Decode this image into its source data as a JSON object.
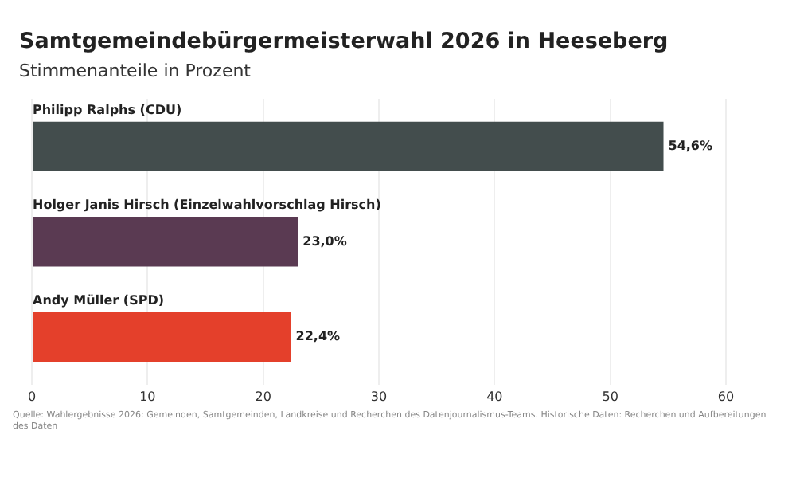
{
  "chart_data": {
    "type": "bar",
    "orientation": "horizontal",
    "title": "Samtgemeindebürgermeisterwahl 2026 in Heeseberg",
    "subtitle": "Stimmenanteile in Prozent",
    "categories": [
      "Philipp Ralphs (CDU)",
      "Holger Janis Hirsch (Einzelwahlvorschlag Hirsch)",
      "Andy Müller (SPD)"
    ],
    "values": [
      54.6,
      23.0,
      22.4
    ],
    "colors": [
      "#434d4d",
      "#5a3a52",
      "#e4402b"
    ],
    "value_labels": [
      "54,6%",
      "23,0%",
      "22,4%"
    ],
    "xlim": [
      0,
      60
    ],
    "xticks": [
      0,
      10,
      20,
      30,
      40,
      50,
      60
    ],
    "grid": "x",
    "annotations": [
      "Quelle: Wahlergebnisse 2026: Gemeinden, Samtgemeinden, Landkreise und Recherchen des Datenjournalismus-Teams. Historische Daten: Recherchen und Aufbereitungen des Daten"
    ]
  }
}
